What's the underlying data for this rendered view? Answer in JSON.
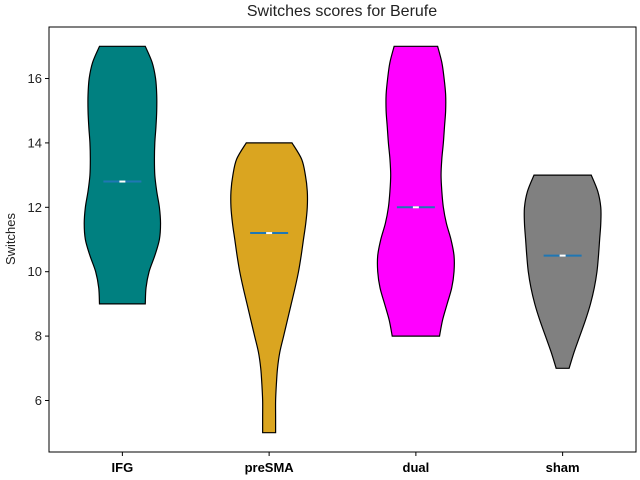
{
  "chart_data": {
    "type": "violin",
    "title": "Switches scores for Berufe",
    "xlabel": "",
    "ylabel": "Switches",
    "ylim": [
      4.4,
      17.6
    ],
    "yticks": [
      6,
      8,
      10,
      12,
      14,
      16
    ],
    "grid": false,
    "categories": [
      "IFG",
      "preSMA",
      "dual",
      "sham"
    ],
    "series": [
      {
        "category": "IFG",
        "color": "#008080",
        "min": 9,
        "max": 17,
        "median": 12.8,
        "density": [
          [
            9,
            0.6
          ],
          [
            9.5,
            0.62
          ],
          [
            10,
            0.7
          ],
          [
            10.5,
            0.85
          ],
          [
            11,
            0.97
          ],
          [
            11.5,
            1.0
          ],
          [
            12,
            0.97
          ],
          [
            12.5,
            0.9
          ],
          [
            13,
            0.85
          ],
          [
            13.5,
            0.84
          ],
          [
            14,
            0.85
          ],
          [
            14.5,
            0.88
          ],
          [
            15,
            0.9
          ],
          [
            15.5,
            0.9
          ],
          [
            16,
            0.87
          ],
          [
            16.5,
            0.78
          ],
          [
            17,
            0.6
          ]
        ]
      },
      {
        "category": "preSMA",
        "color": "#DAA520",
        "min": 5,
        "max": 14,
        "median": 11.2,
        "density": [
          [
            5,
            0.17
          ],
          [
            5.5,
            0.17
          ],
          [
            6,
            0.17
          ],
          [
            6.5,
            0.19
          ],
          [
            7,
            0.22
          ],
          [
            7.5,
            0.28
          ],
          [
            8,
            0.38
          ],
          [
            8.5,
            0.48
          ],
          [
            9,
            0.58
          ],
          [
            9.5,
            0.68
          ],
          [
            10,
            0.77
          ],
          [
            10.5,
            0.84
          ],
          [
            11,
            0.9
          ],
          [
            11.5,
            0.96
          ],
          [
            12,
            1.0
          ],
          [
            12.5,
            1.0
          ],
          [
            13,
            0.95
          ],
          [
            13.5,
            0.85
          ],
          [
            14,
            0.6
          ]
        ]
      },
      {
        "category": "dual",
        "color": "#FF00FF",
        "min": 8,
        "max": 17,
        "median": 12.0,
        "density": [
          [
            8,
            0.62
          ],
          [
            8.5,
            0.7
          ],
          [
            9,
            0.82
          ],
          [
            9.5,
            0.94
          ],
          [
            10,
            1.0
          ],
          [
            10.5,
            1.0
          ],
          [
            11,
            0.92
          ],
          [
            11.5,
            0.8
          ],
          [
            12,
            0.72
          ],
          [
            12.5,
            0.68
          ],
          [
            13,
            0.66
          ],
          [
            13.5,
            0.68
          ],
          [
            14,
            0.72
          ],
          [
            14.5,
            0.75
          ],
          [
            15,
            0.78
          ],
          [
            15.5,
            0.78
          ],
          [
            16,
            0.74
          ],
          [
            16.5,
            0.68
          ],
          [
            17,
            0.57
          ]
        ]
      },
      {
        "category": "sham",
        "color": "#808080",
        "min": 7,
        "max": 13,
        "median": 10.5,
        "density": [
          [
            7,
            0.17
          ],
          [
            7.5,
            0.3
          ],
          [
            8,
            0.45
          ],
          [
            8.5,
            0.6
          ],
          [
            9,
            0.73
          ],
          [
            9.5,
            0.83
          ],
          [
            10,
            0.9
          ],
          [
            10.5,
            0.94
          ],
          [
            11,
            0.97
          ],
          [
            11.5,
            1.0
          ],
          [
            12,
            1.0
          ],
          [
            12.5,
            0.92
          ],
          [
            13,
            0.75
          ]
        ]
      }
    ]
  }
}
